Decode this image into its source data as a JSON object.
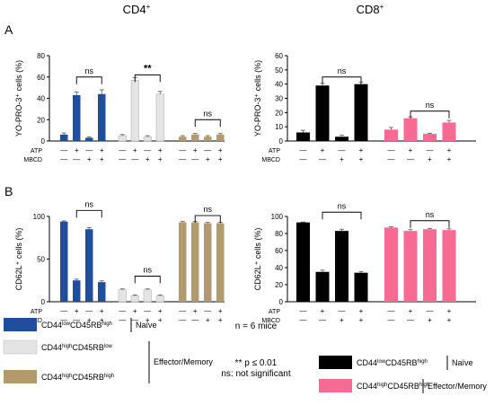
{
  "headers": {
    "cd4": "CD4",
    "cd8": "CD8",
    "sup": "+"
  },
  "panels": {
    "a": "A",
    "b": "B"
  },
  "row_labels": {
    "atp": "ATP",
    "mbcd": "MBCD"
  },
  "treatments": {
    "atp": [
      "—",
      "+",
      "—",
      "+"
    ],
    "mbcd": [
      "—",
      "—",
      "+",
      "+"
    ]
  },
  "colors": {
    "cd4_naive": "#1f4e9c",
    "cd4_effector": "#e4e4e4",
    "cd4_memory": "#b39a6c",
    "cd8_naive": "#000000",
    "cd8_effector": "#f76a93"
  },
  "legend_cd4": {
    "items": [
      {
        "pre": "CD44",
        "sup1": "low",
        "mid": "CD45RB",
        "sup2": "high",
        "color": "#1f4e9c"
      },
      {
        "pre": "CD44",
        "sup1": "high",
        "mid": "CD45RB",
        "sup2": "low",
        "color": "#e4e4e4"
      },
      {
        "pre": "CD44",
        "sup1": "high",
        "mid": "CD45RB",
        "sup2": "high",
        "color": "#b39a6c"
      }
    ],
    "naive_label": "Naïve",
    "effmem_label": "Effector/Memory"
  },
  "legend_cd8": {
    "items": [
      {
        "pre": "CD44",
        "sup1": "low",
        "mid": "CD45RB",
        "sup2": "high",
        "color": "#000000",
        "group": "Naïve"
      },
      {
        "pre": "CD44",
        "sup1": "high",
        "mid": "CD45RB",
        "sup2": "high",
        "color": "#f76a93",
        "group": "Effector/Memory"
      }
    ]
  },
  "notes": {
    "n": "n = 6 mice",
    "sig": "** p ≤ 0.01",
    "ns": "ns: not significant"
  },
  "chart_data": [
    {
      "id": "A-CD4",
      "type": "bar",
      "ylabel": "YO-PRO-3⁺ cells (%)",
      "ylim": [
        0,
        80
      ],
      "yticks": [
        0,
        20,
        40,
        60,
        80
      ],
      "groups": [
        {
          "color": "#1f4e9c",
          "values": [
            6,
            43,
            3,
            44
          ],
          "errors": [
            1.5,
            3,
            1,
            4
          ]
        },
        {
          "color": "#e4e4e4",
          "values": [
            5,
            57,
            4,
            44
          ],
          "errors": [
            1,
            2.5,
            1,
            2.5
          ]
        },
        {
          "color": "#b39a6c",
          "values": [
            4,
            6,
            4,
            6
          ],
          "errors": [
            1,
            1,
            1,
            1
          ]
        }
      ],
      "brackets": [
        {
          "group": 0,
          "from": 1,
          "to": 3,
          "y": 60,
          "label": "ns"
        },
        {
          "group": 1,
          "from": 1,
          "to": 3,
          "y": 62,
          "label": "**"
        },
        {
          "group": 2,
          "from": 1,
          "to": 3,
          "y": 20,
          "label": "ns"
        }
      ]
    },
    {
      "id": "A-CD8",
      "type": "bar",
      "ylabel": "YO-PRO-3⁺ cells (%)",
      "ylim": [
        0,
        60
      ],
      "yticks": [
        0,
        10,
        20,
        30,
        40,
        50,
        60
      ],
      "groups": [
        {
          "color": "#000000",
          "values": [
            6,
            39,
            3,
            40
          ],
          "errors": [
            1.5,
            1.5,
            1,
            1.5
          ]
        },
        {
          "color": "#f76a93",
          "values": [
            8,
            16,
            5,
            13
          ],
          "errors": [
            1.5,
            1,
            0.5,
            1.5
          ]
        }
      ],
      "brackets": [
        {
          "group": 0,
          "from": 1,
          "to": 3,
          "y": 45,
          "label": "ns"
        },
        {
          "group": 1,
          "from": 1,
          "to": 3,
          "y": 21,
          "label": "ns"
        }
      ]
    },
    {
      "id": "B-CD4",
      "type": "bar",
      "ylabel": "CD62L⁺ cells (%)",
      "ylim": [
        0,
        100
      ],
      "yticks": [
        0,
        50,
        100
      ],
      "groups": [
        {
          "color": "#1f4e9c",
          "values": [
            94,
            25,
            85,
            23
          ],
          "errors": [
            0.8,
            1.5,
            2,
            1.5
          ]
        },
        {
          "color": "#e4e4e4",
          "values": [
            14,
            7,
            14,
            7
          ],
          "errors": [
            1,
            1,
            1,
            1
          ]
        },
        {
          "color": "#b39a6c",
          "values": [
            93,
            93,
            92,
            92
          ],
          "errors": [
            1,
            1,
            1,
            1
          ]
        }
      ],
      "brackets": [
        {
          "group": 0,
          "from": 1,
          "to": 3,
          "y": 107,
          "label": "ns"
        },
        {
          "group": 1,
          "from": 1,
          "to": 3,
          "y": 30,
          "label": "ns"
        },
        {
          "group": 2,
          "from": 1,
          "to": 3,
          "y": 101,
          "label": "ns"
        }
      ]
    },
    {
      "id": "B-CD8",
      "type": "bar",
      "ylabel": "CD62L⁺ cells (%)",
      "ylim": [
        0,
        100
      ],
      "yticks": [
        0,
        20,
        40,
        60,
        80,
        100
      ],
      "groups": [
        {
          "color": "#000000",
          "values": [
            93,
            35,
            83,
            34
          ],
          "errors": [
            0.5,
            2,
            2,
            1.5
          ]
        },
        {
          "color": "#f76a93",
          "values": [
            87,
            83,
            85,
            84
          ],
          "errors": [
            1,
            1.5,
            1,
            1.5
          ]
        }
      ],
      "brackets": [
        {
          "group": 0,
          "from": 1,
          "to": 3,
          "y": 105,
          "label": "ns"
        },
        {
          "group": 1,
          "from": 1,
          "to": 3,
          "y": 95,
          "label": "ns"
        }
      ]
    }
  ]
}
